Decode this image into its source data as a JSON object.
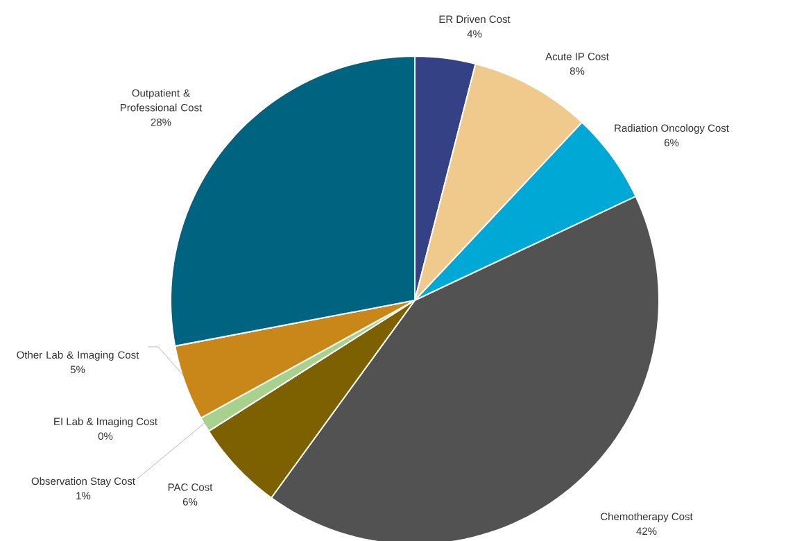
{
  "chart_data": {
    "type": "pie",
    "categories": [
      "ER Driven Cost",
      "Acute IP Cost",
      "Radiation Oncology Cost",
      "Chemotherapy Cost",
      "PAC Cost",
      "Observation Stay Cost",
      "EI Lab & Imaging Cost",
      "Other Lab & Imaging Cost",
      "Outpatient & Professional Cost"
    ],
    "values": [
      4,
      8,
      6,
      42,
      6,
      1,
      0,
      5,
      28
    ],
    "value_labels": [
      "4%",
      "8%",
      "6%",
      "42%",
      "6%",
      "1%",
      "0%",
      "5%",
      "28%"
    ],
    "colors": [
      "#344185",
      "#f0ca8c",
      "#00a8d6",
      "#525252",
      "#7d6000",
      "#a9d18e",
      "#264478",
      "#c9871a",
      "#00637f"
    ]
  }
}
